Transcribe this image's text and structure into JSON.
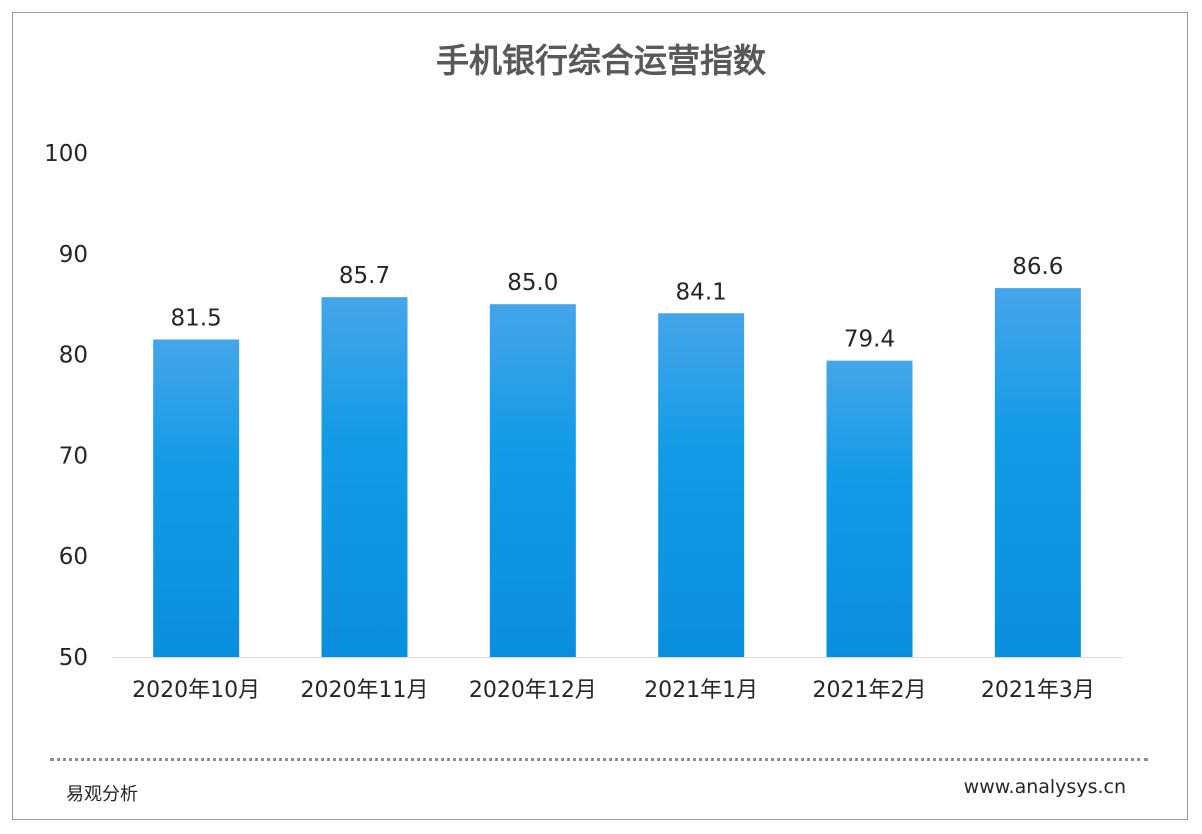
{
  "chart_data": {
    "type": "bar",
    "title": "手机银行综合运营指数",
    "categories": [
      "2020年10月",
      "2020年11月",
      "2020年12月",
      "2021年1月",
      "2021年2月",
      "2021年3月"
    ],
    "values": [
      81.5,
      85.7,
      85.0,
      84.1,
      79.4,
      86.6
    ],
    "value_labels": [
      "81.5",
      "85.7",
      "85.0",
      "84.1",
      "79.4",
      "86.6"
    ],
    "ylim": [
      50,
      100
    ],
    "yticks": [
      "50",
      "60",
      "70",
      "80",
      "90",
      "100"
    ],
    "xlabel": "",
    "ylabel": "",
    "grid": false,
    "bar_color_top": "#45a5ea",
    "bar_color_bottom": "#0a8fdf"
  },
  "footer": {
    "source": "易观分析",
    "site": "www.analysys.cn"
  }
}
